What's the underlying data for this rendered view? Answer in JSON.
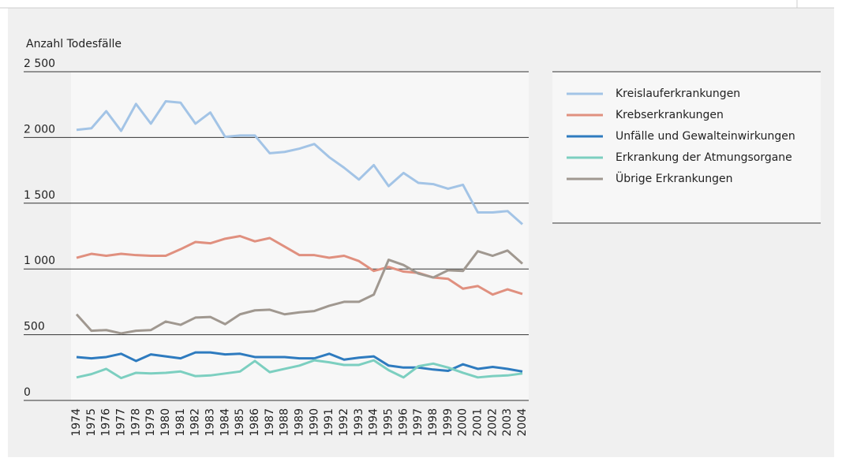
{
  "chart_data": {
    "type": "line",
    "y_label": "Anzahl Todesfälle",
    "categories": [
      "1974",
      "1975",
      "1976",
      "1977",
      "1978",
      "1979",
      "1980",
      "1981",
      "1982",
      "1983",
      "1984",
      "1985",
      "1986",
      "1987",
      "1988",
      "1989",
      "1990",
      "1991",
      "1992",
      "1993",
      "1994",
      "1995",
      "1996",
      "1997",
      "1998",
      "1999",
      "2000",
      "2001",
      "2002",
      "2003",
      "2004"
    ],
    "series": [
      {
        "name": "Kreislauferkrankungen",
        "color": "#a3c4e6",
        "values": [
          2058,
          2070,
          2200,
          2050,
          2255,
          2105,
          2275,
          2265,
          2105,
          2190,
          2005,
          2015,
          2015,
          1880,
          1890,
          1915,
          1950,
          1850,
          1770,
          1680,
          1790,
          1630,
          1730,
          1655,
          1645,
          1610,
          1640,
          1430,
          1430,
          1440,
          1340
        ]
      },
      {
        "name": "Krebserkrankungen",
        "color": "#e0907f",
        "values": [
          1085,
          1115,
          1100,
          1115,
          1105,
          1100,
          1100,
          1150,
          1205,
          1195,
          1230,
          1250,
          1210,
          1235,
          1170,
          1105,
          1105,
          1085,
          1100,
          1060,
          985,
          1015,
          980,
          970,
          935,
          925,
          850,
          870,
          805,
          845,
          810
        ]
      },
      {
        "name": "Unfälle und Gewalteinwirkungen",
        "color": "#2e7bbf",
        "values": [
          330,
          320,
          330,
          355,
          300,
          350,
          335,
          320,
          365,
          365,
          350,
          355,
          330,
          330,
          330,
          320,
          320,
          355,
          310,
          325,
          335,
          265,
          250,
          250,
          235,
          225,
          275,
          240,
          255,
          240,
          220
        ]
      },
      {
        "name": "Erkrankung der Atmungsorgane",
        "color": "#7ccfc0",
        "values": [
          175,
          200,
          240,
          170,
          210,
          205,
          210,
          220,
          185,
          190,
          205,
          220,
          300,
          215,
          240,
          265,
          305,
          290,
          270,
          270,
          305,
          230,
          175,
          260,
          280,
          250,
          210,
          175,
          185,
          190,
          205
        ]
      },
      {
        "name": "Übrige Erkrankungen",
        "color": "#a09890",
        "values": [
          655,
          530,
          535,
          510,
          530,
          535,
          600,
          575,
          630,
          635,
          580,
          655,
          685,
          690,
          655,
          670,
          680,
          720,
          750,
          750,
          805,
          1070,
          1030,
          965,
          935,
          990,
          985,
          1135,
          1100,
          1140,
          1040
        ]
      }
    ],
    "ylim": [
      0,
      2500
    ],
    "yticks": [
      0,
      500,
      {
        "value": 1000,
        "label": "1 000"
      },
      {
        "value": 1500,
        "label": "1 500"
      },
      {
        "value": 2000,
        "label": "2 000"
      },
      {
        "value": 2500,
        "label": "2 500"
      }
    ],
    "grid": true
  }
}
